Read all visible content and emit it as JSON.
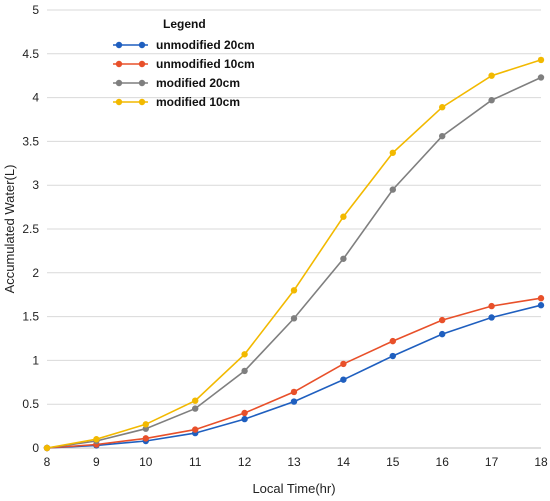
{
  "chart_data": {
    "type": "line",
    "xlabel": "Local Time(hr)",
    "ylabel": "Accumulated Water(L)",
    "xlim": [
      8,
      18
    ],
    "ylim": [
      0,
      5
    ],
    "x": [
      8,
      9,
      10,
      11,
      12,
      13,
      14,
      15,
      16,
      17,
      18
    ],
    "x_ticks": [
      "8",
      "9",
      "10",
      "11",
      "12",
      "13",
      "14",
      "15",
      "16",
      "17",
      "18"
    ],
    "y_ticks": [
      "0",
      "0.5",
      "1",
      "1.5",
      "2",
      "2.5",
      "3",
      "3.5",
      "4",
      "4.5",
      "5"
    ],
    "y_tick_values": [
      0,
      0.5,
      1,
      1.5,
      2,
      2.5,
      3,
      3.5,
      4,
      4.5,
      5
    ],
    "grid": "horizontal",
    "legend": {
      "title": "Legend",
      "placement": "top-left"
    },
    "series": [
      {
        "name": "unmodified 20cm",
        "color": "#1f5fbf",
        "values": [
          0,
          0.03,
          0.08,
          0.17,
          0.33,
          0.53,
          0.78,
          1.05,
          1.3,
          1.49,
          1.63
        ]
      },
      {
        "name": "unmodified 10cm",
        "color": "#e8502a",
        "values": [
          0,
          0.04,
          0.11,
          0.21,
          0.4,
          0.64,
          0.96,
          1.22,
          1.46,
          1.62,
          1.71
        ]
      },
      {
        "name": "modified 20cm",
        "color": "#7f7f7f",
        "values": [
          0,
          0.08,
          0.22,
          0.45,
          0.88,
          1.48,
          2.16,
          2.95,
          3.56,
          3.97,
          4.23
        ]
      },
      {
        "name": "modified 10cm",
        "color": "#f2b900",
        "values": [
          0,
          0.1,
          0.27,
          0.54,
          1.07,
          1.8,
          2.64,
          3.37,
          3.89,
          4.25,
          4.43
        ]
      }
    ]
  }
}
